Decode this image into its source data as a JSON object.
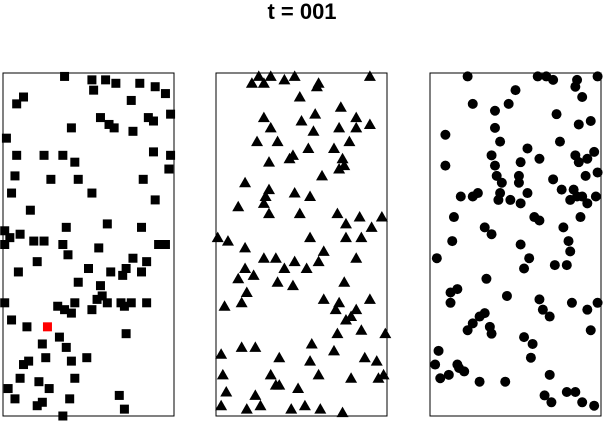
{
  "figure_title": "t = 001",
  "colors": {
    "marker": "#000000",
    "highlight": "#ff0000"
  },
  "chart_data": [
    {
      "type": "scatter",
      "marker": "square",
      "xlim": [
        0,
        1
      ],
      "ylim": [
        0,
        1
      ],
      "grid": false,
      "points": [
        [
          0.36,
          0.99
        ],
        [
          0.52,
          0.98
        ],
        [
          0.6,
          0.98
        ],
        [
          0.66,
          0.97
        ],
        [
          0.8,
          0.97
        ],
        [
          0.89,
          0.96
        ],
        [
          0.53,
          0.95
        ],
        [
          0.95,
          0.94
        ],
        [
          0.12,
          0.93
        ],
        [
          0.75,
          0.92
        ],
        [
          0.08,
          0.91
        ],
        [
          0.57,
          0.87
        ],
        [
          0.62,
          0.85
        ],
        [
          0.85,
          0.87
        ],
        [
          0.98,
          0.88
        ],
        [
          0.88,
          0.86
        ],
        [
          0.65,
          0.84
        ],
        [
          0.4,
          0.84
        ],
        [
          0.76,
          0.83
        ],
        [
          0.02,
          0.81
        ],
        [
          0.08,
          0.76
        ],
        [
          0.24,
          0.76
        ],
        [
          0.35,
          0.76
        ],
        [
          0.88,
          0.77
        ],
        [
          0.98,
          0.76
        ],
        [
          0.42,
          0.74
        ],
        [
          0.97,
          0.72
        ],
        [
          0.07,
          0.7
        ],
        [
          0.28,
          0.69
        ],
        [
          0.44,
          0.69
        ],
        [
          0.82,
          0.69
        ],
        [
          0.05,
          0.65
        ],
        [
          0.52,
          0.65
        ],
        [
          0.89,
          0.63
        ],
        [
          0.16,
          0.6
        ],
        [
          0.37,
          0.55
        ],
        [
          0.01,
          0.54
        ],
        [
          0.1,
          0.53
        ],
        [
          0.81,
          0.55
        ],
        [
          0.61,
          0.56
        ],
        [
          0.04,
          0.52
        ],
        [
          0.24,
          0.51
        ],
        [
          0.01,
          0.5
        ],
        [
          0.18,
          0.51
        ],
        [
          0.35,
          0.5
        ],
        [
          0.91,
          0.5
        ],
        [
          0.95,
          0.5
        ],
        [
          0.56,
          0.49
        ],
        [
          0.38,
          0.47
        ],
        [
          0.2,
          0.45
        ],
        [
          0.76,
          0.46
        ],
        [
          0.84,
          0.45
        ],
        [
          0.09,
          0.42
        ],
        [
          0.5,
          0.43
        ],
        [
          0.63,
          0.42
        ],
        [
          0.72,
          0.43
        ],
        [
          0.81,
          0.42
        ],
        [
          0.7,
          0.41
        ],
        [
          0.44,
          0.39
        ],
        [
          0.57,
          0.38
        ],
        [
          0.58,
          0.35
        ],
        [
          0.61,
          0.33
        ],
        [
          0.32,
          0.32
        ],
        [
          0.69,
          0.33
        ],
        [
          0.52,
          0.31
        ],
        [
          0.36,
          0.31
        ],
        [
          0.42,
          0.33
        ],
        [
          0.55,
          0.34
        ],
        [
          0.75,
          0.33
        ],
        [
          0.84,
          0.33
        ],
        [
          0.01,
          0.33
        ],
        [
          0.05,
          0.28
        ],
        [
          0.14,
          0.26
        ],
        [
          0.4,
          0.3
        ],
        [
          0.71,
          0.32
        ],
        [
          0.72,
          0.24
        ],
        [
          0.33,
          0.23
        ],
        [
          0.23,
          0.21
        ],
        [
          0.37,
          0.2
        ],
        [
          0.25,
          0.17
        ],
        [
          0.49,
          0.17
        ],
        [
          0.15,
          0.16
        ],
        [
          0.4,
          0.16
        ],
        [
          0.12,
          0.15
        ],
        [
          0.42,
          0.11
        ],
        [
          0.1,
          0.11
        ],
        [
          0.03,
          0.08
        ],
        [
          0.21,
          0.1
        ],
        [
          0.27,
          0.08
        ],
        [
          0.07,
          0.05
        ],
        [
          0.23,
          0.04
        ],
        [
          0.2,
          0.03
        ],
        [
          0.39,
          0.05
        ],
        [
          0.68,
          0.06
        ],
        [
          0.71,
          0.02
        ],
        [
          0.35,
          0.0
        ]
      ],
      "highlight": [
        0.26,
        0.26
      ]
    },
    {
      "type": "scatter",
      "marker": "triangle",
      "xlim": [
        0,
        1
      ],
      "ylim": [
        0,
        1
      ],
      "grid": false,
      "points": [
        [
          0.25,
          0.99
        ],
        [
          0.32,
          0.99
        ],
        [
          0.4,
          0.98
        ],
        [
          0.46,
          0.99
        ],
        [
          0.21,
          0.97
        ],
        [
          0.28,
          0.97
        ],
        [
          0.6,
          0.97
        ],
        [
          0.9,
          0.99
        ],
        [
          0.59,
          0.96
        ],
        [
          0.49,
          0.93
        ],
        [
          0.58,
          0.88
        ],
        [
          0.73,
          0.9
        ],
        [
          0.82,
          0.87
        ],
        [
          0.9,
          0.85
        ],
        [
          0.28,
          0.87
        ],
        [
          0.5,
          0.86
        ],
        [
          0.32,
          0.84
        ],
        [
          0.57,
          0.83
        ],
        [
          0.72,
          0.84
        ],
        [
          0.82,
          0.84
        ],
        [
          0.24,
          0.8
        ],
        [
          0.36,
          0.8
        ],
        [
          0.78,
          0.8
        ],
        [
          0.69,
          0.78
        ],
        [
          0.54,
          0.78
        ],
        [
          0.45,
          0.76
        ],
        [
          0.43,
          0.75
        ],
        [
          0.74,
          0.75
        ],
        [
          0.31,
          0.74
        ],
        [
          0.75,
          0.73
        ],
        [
          0.72,
          0.72
        ],
        [
          0.62,
          0.7
        ],
        [
          0.17,
          0.68
        ],
        [
          0.31,
          0.66
        ],
        [
          0.46,
          0.65
        ],
        [
          0.29,
          0.64
        ],
        [
          0.55,
          0.64
        ],
        [
          0.28,
          0.62
        ],
        [
          0.13,
          0.61
        ],
        [
          0.31,
          0.59
        ],
        [
          0.49,
          0.59
        ],
        [
          0.71,
          0.59
        ],
        [
          0.84,
          0.58
        ],
        [
          0.97,
          0.58
        ],
        [
          0.76,
          0.56
        ],
        [
          0.91,
          0.55
        ],
        [
          0.01,
          0.52
        ],
        [
          0.07,
          0.51
        ],
        [
          0.55,
          0.52
        ],
        [
          0.76,
          0.52
        ],
        [
          0.17,
          0.49
        ],
        [
          0.85,
          0.52
        ],
        [
          0.63,
          0.48
        ],
        [
          0.28,
          0.46
        ],
        [
          0.35,
          0.46
        ],
        [
          0.82,
          0.46
        ],
        [
          0.46,
          0.45
        ],
        [
          0.6,
          0.45
        ],
        [
          0.17,
          0.43
        ],
        [
          0.22,
          0.41
        ],
        [
          0.4,
          0.43
        ],
        [
          0.53,
          0.43
        ],
        [
          0.13,
          0.4
        ],
        [
          0.36,
          0.39
        ],
        [
          0.75,
          0.39
        ],
        [
          0.45,
          0.38
        ],
        [
          0.18,
          0.36
        ],
        [
          0.63,
          0.34
        ],
        [
          0.05,
          0.32
        ],
        [
          0.15,
          0.33
        ],
        [
          0.72,
          0.33
        ],
        [
          0.9,
          0.34
        ],
        [
          0.7,
          0.31
        ],
        [
          0.82,
          0.31
        ],
        [
          0.76,
          0.28
        ],
        [
          0.79,
          0.29
        ],
        [
          0.85,
          0.25
        ],
        [
          0.99,
          0.24
        ],
        [
          0.71,
          0.24
        ],
        [
          0.56,
          0.21
        ],
        [
          0.15,
          0.2
        ],
        [
          0.69,
          0.19
        ],
        [
          0.87,
          0.17
        ],
        [
          0.03,
          0.18
        ],
        [
          0.23,
          0.2
        ],
        [
          0.37,
          0.17
        ],
        [
          0.55,
          0.16
        ],
        [
          0.94,
          0.16
        ],
        [
          0.32,
          0.12
        ],
        [
          0.6,
          0.12
        ],
        [
          0.79,
          0.11
        ],
        [
          0.35,
          0.09
        ],
        [
          0.48,
          0.08
        ],
        [
          0.04,
          0.12
        ],
        [
          0.06,
          0.07
        ],
        [
          0.23,
          0.06
        ],
        [
          0.37,
          0.09
        ],
        [
          0.52,
          0.03
        ],
        [
          0.03,
          0.03
        ],
        [
          0.18,
          0.02
        ],
        [
          0.26,
          0.03
        ],
        [
          0.44,
          0.02
        ],
        [
          0.61,
          0.02
        ],
        [
          0.74,
          0.01
        ],
        [
          0.98,
          0.12
        ],
        [
          0.95,
          0.11
        ]
      ]
    },
    {
      "type": "scatter",
      "marker": "circle",
      "xlim": [
        0,
        1
      ],
      "ylim": [
        0,
        1
      ],
      "grid": false,
      "points": [
        [
          0.63,
          0.99
        ],
        [
          0.68,
          0.99
        ],
        [
          0.72,
          0.98
        ],
        [
          0.22,
          0.99
        ],
        [
          0.86,
          0.98
        ],
        [
          0.98,
          0.99
        ],
        [
          0.89,
          0.93
        ],
        [
          0.85,
          0.96
        ],
        [
          0.5,
          0.95
        ],
        [
          0.25,
          0.91
        ],
        [
          0.46,
          0.91
        ],
        [
          0.38,
          0.89
        ],
        [
          0.74,
          0.88
        ],
        [
          0.94,
          0.86
        ],
        [
          0.87,
          0.85
        ],
        [
          0.09,
          0.82
        ],
        [
          0.38,
          0.84
        ],
        [
          0.41,
          0.8
        ],
        [
          0.57,
          0.78
        ],
        [
          0.76,
          0.8
        ],
        [
          0.36,
          0.76
        ],
        [
          0.53,
          0.74
        ],
        [
          0.64,
          0.75
        ],
        [
          0.85,
          0.76
        ],
        [
          0.96,
          0.77
        ],
        [
          0.92,
          0.75
        ],
        [
          0.91,
          0.7
        ],
        [
          0.38,
          0.73
        ],
        [
          0.42,
          0.68
        ],
        [
          0.52,
          0.7
        ],
        [
          0.09,
          0.73
        ],
        [
          0.39,
          0.7
        ],
        [
          0.72,
          0.69
        ],
        [
          0.87,
          0.74
        ],
        [
          0.98,
          0.71
        ],
        [
          0.84,
          0.66
        ],
        [
          0.28,
          0.65
        ],
        [
          0.41,
          0.65
        ],
        [
          0.52,
          0.68
        ],
        [
          0.57,
          0.65
        ],
        [
          0.77,
          0.66
        ],
        [
          0.89,
          0.64
        ],
        [
          0.97,
          0.64
        ],
        [
          0.86,
          0.64
        ],
        [
          0.92,
          0.62
        ],
        [
          0.18,
          0.64
        ],
        [
          0.25,
          0.64
        ],
        [
          0.4,
          0.63
        ],
        [
          0.47,
          0.63
        ],
        [
          0.53,
          0.62
        ],
        [
          0.82,
          0.63
        ],
        [
          0.88,
          0.58
        ],
        [
          0.32,
          0.55
        ],
        [
          0.61,
          0.58
        ],
        [
          0.64,
          0.57
        ],
        [
          0.78,
          0.55
        ],
        [
          0.36,
          0.53
        ],
        [
          0.53,
          0.5
        ],
        [
          0.81,
          0.51
        ],
        [
          0.14,
          0.58
        ],
        [
          0.13,
          0.51
        ],
        [
          0.82,
          0.48
        ],
        [
          0.04,
          0.46
        ],
        [
          0.58,
          0.46
        ],
        [
          0.8,
          0.44
        ],
        [
          0.55,
          0.43
        ],
        [
          0.73,
          0.44
        ],
        [
          0.33,
          0.4
        ],
        [
          0.12,
          0.36
        ],
        [
          0.16,
          0.37
        ],
        [
          0.12,
          0.33
        ],
        [
          0.45,
          0.35
        ],
        [
          0.64,
          0.34
        ],
        [
          0.66,
          0.31
        ],
        [
          0.83,
          0.33
        ],
        [
          0.92,
          0.31
        ],
        [
          0.98,
          0.33
        ],
        [
          0.7,
          0.29
        ],
        [
          0.32,
          0.3
        ],
        [
          0.35,
          0.26
        ],
        [
          0.29,
          0.29
        ],
        [
          0.25,
          0.27
        ],
        [
          0.22,
          0.25
        ],
        [
          0.36,
          0.24
        ],
        [
          0.55,
          0.23
        ],
        [
          0.94,
          0.25
        ],
        [
          0.05,
          0.19
        ],
        [
          0.17,
          0.14
        ],
        [
          0.16,
          0.15
        ],
        [
          0.11,
          0.12
        ],
        [
          0.2,
          0.13
        ],
        [
          0.06,
          0.11
        ],
        [
          0.6,
          0.21
        ],
        [
          0.59,
          0.17
        ],
        [
          0.7,
          0.12
        ],
        [
          0.44,
          0.1
        ],
        [
          0.29,
          0.1
        ],
        [
          0.67,
          0.06
        ],
        [
          0.8,
          0.07
        ],
        [
          0.71,
          0.04
        ],
        [
          0.89,
          0.04
        ],
        [
          0.85,
          0.07
        ],
        [
          0.96,
          0.03
        ],
        [
          0.03,
          0.15
        ]
      ]
    }
  ]
}
